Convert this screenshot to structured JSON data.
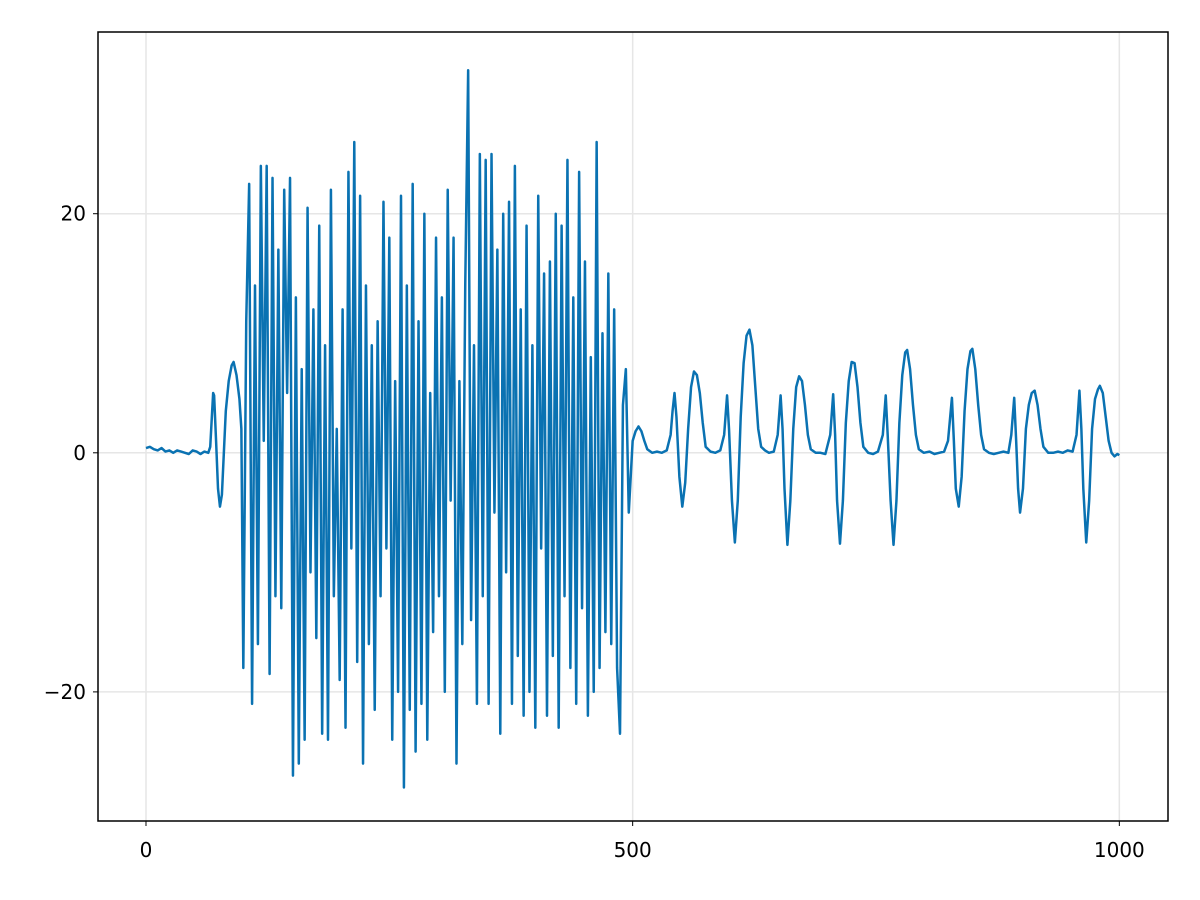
{
  "chart_data": {
    "type": "line",
    "color": "#0a72b2",
    "grid": true,
    "xlim": [
      -49.3,
      1050
    ],
    "ylim": [
      -30.8,
      35.2
    ],
    "xticks": [
      0,
      500,
      1000
    ],
    "yticks": [
      {
        "value": -20,
        "label": "−20"
      },
      0,
      20
    ],
    "x": [
      0,
      4,
      8,
      12,
      16,
      20,
      24,
      28,
      32,
      36,
      40,
      44,
      48,
      52,
      56,
      60,
      64,
      66,
      68,
      69,
      70,
      72,
      74,
      76,
      78,
      80,
      82,
      85,
      88,
      90,
      93,
      96,
      98,
      100,
      103,
      106,
      109,
      112,
      115,
      118,
      121,
      124,
      127,
      130,
      133,
      136,
      139,
      142,
      145,
      148,
      151,
      154,
      157,
      160,
      163,
      166,
      169,
      172,
      175,
      178,
      181,
      184,
      187,
      190,
      193,
      196,
      199,
      202,
      205,
      208,
      211,
      214,
      217,
      220,
      223,
      226,
      229,
      232,
      235,
      238,
      241,
      244,
      247,
      250,
      253,
      256,
      259,
      262,
      265,
      268,
      271,
      274,
      277,
      280,
      283,
      286,
      289,
      292,
      295,
      298,
      301,
      304,
      307,
      310,
      313,
      316,
      319,
      322,
      325,
      328,
      331,
      334,
      337,
      340,
      343,
      346,
      349,
      352,
      355,
      358,
      361,
      364,
      367,
      370,
      373,
      376,
      379,
      382,
      385,
      388,
      391,
      394,
      397,
      400,
      403,
      406,
      409,
      412,
      415,
      418,
      421,
      424,
      427,
      430,
      433,
      436,
      439,
      442,
      445,
      448,
      451,
      454,
      457,
      460,
      463,
      466,
      469,
      472,
      475,
      478,
      481,
      484,
      487,
      490,
      493,
      496,
      498,
      500,
      503,
      506,
      509,
      512,
      515,
      520,
      525,
      530,
      535,
      539,
      541,
      543,
      545,
      548,
      551,
      554,
      557,
      560,
      563,
      566,
      569,
      572,
      575,
      580,
      585,
      590,
      594,
      597,
      599,
      602,
      605,
      608,
      611,
      614,
      617,
      620,
      623,
      626,
      629,
      632,
      636,
      640,
      645,
      649,
      652,
      654,
      656,
      659,
      662,
      665,
      668,
      671,
      674,
      677,
      680,
      683,
      688,
      693,
      698,
      703,
      706,
      708,
      710,
      713,
      716,
      719,
      722,
      725,
      728,
      731,
      734,
      737,
      742,
      747,
      752,
      757,
      760,
      762,
      765,
      768,
      771,
      774,
      777,
      780,
      782,
      785,
      788,
      791,
      794,
      799,
      805,
      810,
      815,
      820,
      824,
      828,
      830,
      832,
      835,
      838,
      841,
      844,
      847,
      849,
      852,
      855,
      858,
      861,
      866,
      871,
      876,
      881,
      886,
      889,
      892,
      894,
      896,
      898,
      901,
      904,
      907,
      910,
      913,
      916,
      919,
      922,
      927,
      932,
      937,
      942,
      947,
      952,
      956,
      959,
      961,
      963,
      966,
      969,
      972,
      975,
      978,
      980,
      983,
      986,
      989,
      992,
      995,
      998,
      1000
    ],
    "values": [
      0.4,
      0.5,
      0.3,
      0.2,
      0.4,
      0.1,
      0.2,
      0,
      0.2,
      0.1,
      0,
      -0.1,
      0.2,
      0.1,
      -0.1,
      0.1,
      0,
      0.5,
      3.5,
      5,
      4.8,
      1,
      -3,
      -4.5,
      -3.5,
      0,
      3.5,
      6,
      7.3,
      7.6,
      6.5,
      4.5,
      2,
      -18,
      11,
      22.5,
      -21,
      14,
      -16,
      24,
      1,
      24,
      -18.5,
      23,
      -12,
      17,
      -13,
      22,
      5,
      23,
      -27,
      13,
      -26,
      7,
      -24,
      20.5,
      -10,
      12,
      -15.5,
      19,
      -23.5,
      9,
      -24,
      22,
      -12,
      2,
      -19,
      12,
      -23,
      23.5,
      -8,
      26,
      -17.5,
      21.5,
      -26,
      14,
      -16,
      9,
      -21.5,
      11,
      -12,
      21,
      -8,
      18,
      -24,
      6,
      -20,
      21.5,
      -28,
      14,
      -21.5,
      22.5,
      -25,
      11,
      -21,
      20,
      -24,
      5,
      -15,
      18,
      -12,
      13,
      -20,
      22,
      -4,
      18,
      -26,
      6,
      -16,
      14,
      32,
      -14,
      9,
      -21,
      25,
      -12,
      24.5,
      -21,
      25,
      -5,
      17,
      -23.5,
      20,
      -10,
      21,
      -21,
      24,
      -17,
      12,
      -22,
      19,
      -20,
      9,
      -23,
      21.5,
      -8,
      15,
      -22,
      16,
      -17,
      20,
      -23,
      19,
      -12,
      24.5,
      -18,
      13,
      -21,
      23.5,
      -13,
      16,
      -22,
      8,
      -20,
      26,
      -18,
      10,
      -15,
      15,
      -16,
      12,
      -18,
      -23.5,
      4,
      7,
      -5,
      -2,
      1,
      1.8,
      2.2,
      1.8,
      1,
      0.3,
      0,
      0.1,
      0,
      0.2,
      1.5,
      3.5,
      5,
      3,
      -2,
      -4.5,
      -2.5,
      2,
      5.5,
      6.8,
      6.5,
      5,
      2.5,
      0.5,
      0.1,
      0,
      0.2,
      1.5,
      4.8,
      2,
      -4,
      -7.5,
      -4,
      3,
      7.5,
      9.8,
      10.3,
      9,
      5.5,
      2,
      0.5,
      0.2,
      0,
      0.1,
      1.5,
      4.8,
      2,
      -3,
      -7.7,
      -4,
      2,
      5.5,
      6.4,
      6,
      4,
      1.5,
      0.3,
      0,
      0,
      -0.1,
      1.5,
      4.9,
      1.5,
      -4,
      -7.6,
      -4,
      2.5,
      6,
      7.6,
      7.5,
      5.5,
      2.5,
      0.5,
      0,
      -0.1,
      0.1,
      1.5,
      4.8,
      1.5,
      -4,
      -7.7,
      -4,
      2.5,
      6.5,
      8.4,
      8.6,
      7,
      4,
      1.5,
      0.3,
      0,
      0.1,
      -0.1,
      0,
      0.1,
      1,
      4.6,
      1,
      -3,
      -4.5,
      -2,
      3.5,
      7,
      8.5,
      8.7,
      7,
      4,
      1.5,
      0.3,
      0,
      -0.1,
      0,
      0.1,
      0,
      1.5,
      4.6,
      1,
      -3,
      -5,
      -3,
      2,
      4,
      5,
      5.2,
      4,
      2,
      0.5,
      0,
      0,
      0.1,
      0,
      0.2,
      0.1,
      1.5,
      5.2,
      2,
      -3,
      -7.5,
      -4,
      2,
      4.5,
      5.3,
      5.6,
      5,
      3,
      1,
      0,
      -0.3,
      -0.1,
      -0.2
    ]
  }
}
